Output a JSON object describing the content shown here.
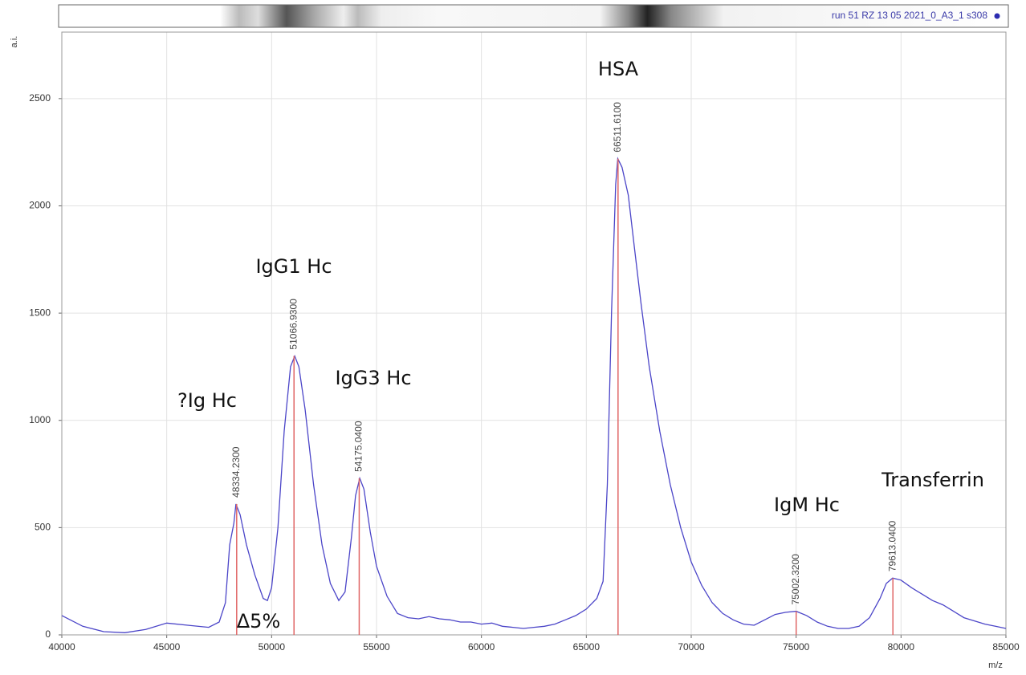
{
  "chart_data": {
    "type": "line",
    "run_label": "run 51 RZ 13 05 2021_0_A3_1 s308",
    "ylabel": "a.i.",
    "xlabel": "m/z",
    "xlim": [
      40000,
      85000
    ],
    "ylim": [
      0,
      2810
    ],
    "xticks": [
      40000,
      45000,
      50000,
      55000,
      60000,
      65000,
      70000,
      75000,
      80000,
      85000
    ],
    "yticks": [
      0,
      500,
      1000,
      1500,
      2000,
      2500
    ],
    "grid": true,
    "series": [
      {
        "color": "#4b45c8",
        "x": [
          40000,
          41000,
          42000,
          43000,
          44000,
          45000,
          46000,
          47000,
          47500,
          47800,
          48000,
          48200,
          48300,
          48500,
          48800,
          49200,
          49600,
          49800,
          50000,
          50300,
          50600,
          50900,
          51100,
          51300,
          51600,
          52000,
          52400,
          52800,
          53200,
          53500,
          53800,
          54000,
          54200,
          54400,
          54700,
          55000,
          55500,
          56000,
          56500,
          57000,
          57500,
          58000,
          58500,
          59000,
          59500,
          60000,
          60500,
          61000,
          61500,
          62000,
          62500,
          63000,
          63500,
          64000,
          64500,
          65000,
          65500,
          65800,
          66000,
          66200,
          66400,
          66500,
          66700,
          67000,
          67300,
          67600,
          68000,
          68500,
          69000,
          69500,
          70000,
          70500,
          71000,
          71500,
          72000,
          72500,
          73000,
          73500,
          74000,
          74500,
          75000,
          75500,
          76000,
          76500,
          77000,
          77500,
          78000,
          78500,
          79000,
          79300,
          79600,
          80000,
          80500,
          81000,
          81500,
          82000,
          82500,
          83000,
          83500,
          84000,
          84500,
          85000
        ],
        "values": [
          90,
          40,
          15,
          10,
          25,
          55,
          45,
          35,
          60,
          150,
          420,
          520,
          610,
          560,
          420,
          280,
          170,
          160,
          220,
          500,
          950,
          1250,
          1300,
          1250,
          1050,
          700,
          420,
          240,
          160,
          200,
          450,
          650,
          730,
          680,
          480,
          320,
          180,
          100,
          80,
          75,
          85,
          75,
          70,
          60,
          60,
          50,
          55,
          40,
          35,
          30,
          35,
          40,
          50,
          70,
          90,
          120,
          170,
          250,
          700,
          1500,
          2100,
          2220,
          2180,
          2050,
          1800,
          1550,
          1250,
          950,
          700,
          500,
          340,
          230,
          150,
          100,
          70,
          50,
          45,
          70,
          95,
          105,
          110,
          90,
          60,
          40,
          30,
          30,
          40,
          80,
          170,
          240,
          265,
          255,
          220,
          190,
          160,
          140,
          110,
          80,
          65,
          50,
          40,
          30
        ]
      }
    ],
    "peaks": {
      "color": "#e06666",
      "x": [
        48334.23,
        51066.93,
        54175.04,
        66511.61,
        75002.32,
        79613.04
      ],
      "x_labels": [
        "48334.2300",
        "51066.9300",
        "54175.0400",
        "66511.6100",
        "75002.3200",
        "79613.0400"
      ],
      "values": [
        610,
        1300,
        730,
        2220,
        110,
        265
      ]
    },
    "annotations": [
      "?Ig Hc",
      "IgG1 Hc",
      "IgG3 Hc",
      "HSA",
      "IgM Hc",
      "Transferrin",
      "Δ5%"
    ]
  }
}
